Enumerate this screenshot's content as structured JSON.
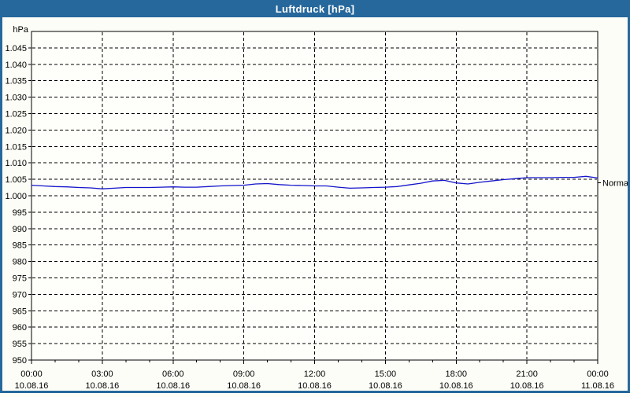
{
  "window": {
    "title": "Luftdruck [hPa]"
  },
  "colors": {
    "frame_blue": "#26689c",
    "background": "#fcfdf7",
    "plot_background": "#fefefa",
    "line_blue": "#1414cc",
    "grid_black": "#000000",
    "title_text": "#ffffff"
  },
  "chart_data": {
    "type": "line",
    "title": "Luftdruck [hPa]",
    "y_unit_label": "hPa",
    "ylim": [
      950,
      1050
    ],
    "grid": true,
    "y_ticks": [
      {
        "value": 1045,
        "label": "1.045"
      },
      {
        "value": 1040,
        "label": "1.040"
      },
      {
        "value": 1035,
        "label": "1.035"
      },
      {
        "value": 1030,
        "label": "1.030"
      },
      {
        "value": 1025,
        "label": "1.025"
      },
      {
        "value": 1020,
        "label": "1.020"
      },
      {
        "value": 1015,
        "label": "1.015"
      },
      {
        "value": 1010,
        "label": "1.010"
      },
      {
        "value": 1005,
        "label": "1.005"
      },
      {
        "value": 1000,
        "label": "1.000"
      },
      {
        "value": 995,
        "label": "995"
      },
      {
        "value": 990,
        "label": "990"
      },
      {
        "value": 985,
        "label": "985"
      },
      {
        "value": 980,
        "label": "980"
      },
      {
        "value": 975,
        "label": "975"
      },
      {
        "value": 970,
        "label": "970"
      },
      {
        "value": 965,
        "label": "965"
      },
      {
        "value": 960,
        "label": "960"
      },
      {
        "value": 955,
        "label": "955"
      },
      {
        "value": 950,
        "label": "950"
      }
    ],
    "xlim_hours": [
      0,
      24
    ],
    "x_minor_tick_interval_hours": 1,
    "x_major_ticks": [
      {
        "hour": 0,
        "time": "00:00",
        "date": "10.08.16"
      },
      {
        "hour": 3,
        "time": "03:00",
        "date": "10.08.16"
      },
      {
        "hour": 6,
        "time": "06:00",
        "date": "10.08.16"
      },
      {
        "hour": 9,
        "time": "09:00",
        "date": "10.08.16"
      },
      {
        "hour": 12,
        "time": "12:00",
        "date": "10.08.16"
      },
      {
        "hour": 15,
        "time": "15:00",
        "date": "10.08.16"
      },
      {
        "hour": 18,
        "time": "18:00",
        "date": "10.08.16"
      },
      {
        "hour": 21,
        "time": "21:00",
        "date": "10.08.16"
      },
      {
        "hour": 24,
        "time": "00:00",
        "date": "11.08.16"
      }
    ],
    "series": [
      {
        "name": "Luftdruck",
        "x_hours": [
          0,
          0.5,
          1,
          1.5,
          2,
          2.5,
          3,
          3.5,
          4,
          4.5,
          5,
          5.5,
          6,
          6.5,
          7,
          7.5,
          8,
          8.5,
          9,
          9.5,
          10,
          10.5,
          11,
          11.5,
          12,
          12.5,
          13,
          13.5,
          14,
          14.5,
          15,
          15.5,
          16,
          16.5,
          17,
          17.5,
          18,
          18.5,
          19,
          19.5,
          20,
          20.5,
          21,
          21.5,
          22,
          22.5,
          23,
          23.5,
          24
        ],
        "values": [
          1003.2,
          1003.0,
          1002.8,
          1002.7,
          1002.5,
          1002.4,
          1002.1,
          1002.3,
          1002.5,
          1002.5,
          1002.5,
          1002.6,
          1002.7,
          1002.6,
          1002.6,
          1002.8,
          1003.0,
          1003.1,
          1003.2,
          1003.6,
          1003.7,
          1003.4,
          1003.2,
          1003.1,
          1003.0,
          1003.0,
          1002.6,
          1002.3,
          1002.4,
          1002.5,
          1002.6,
          1002.8,
          1003.3,
          1003.8,
          1004.5,
          1004.7,
          1003.9,
          1003.6,
          1004.1,
          1004.5,
          1004.9,
          1005.2,
          1005.5,
          1005.5,
          1005.5,
          1005.6,
          1005.6,
          1005.9,
          1005.4
        ]
      }
    ],
    "annotation": {
      "label": "Normal",
      "value": 1004
    }
  }
}
